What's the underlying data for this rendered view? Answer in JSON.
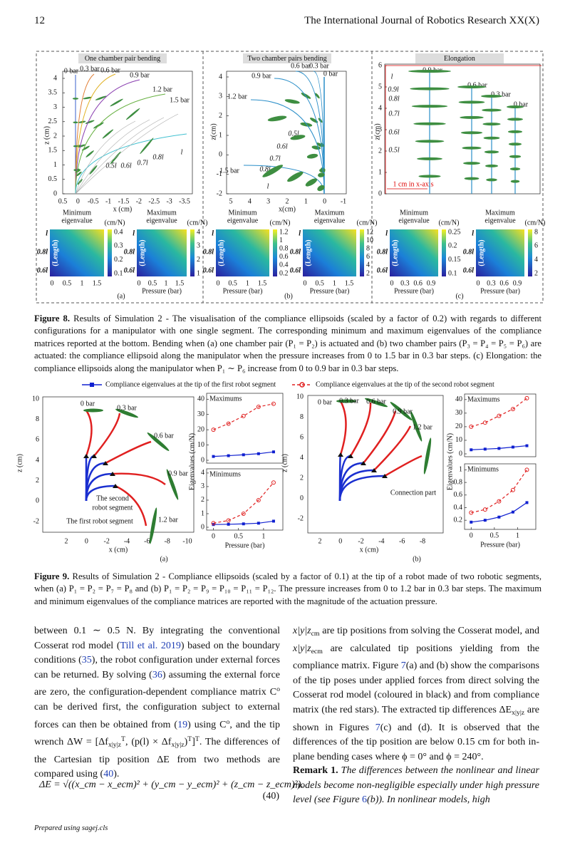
{
  "header": {
    "page_number": "12",
    "journal": "The International Journal of Robotics Research XX(X)"
  },
  "figure8": {
    "panels": [
      {
        "title": "One chamber pair bending",
        "xlabel": "x (cm)",
        "ylabel": "z (cm)",
        "xticks": [
          "0.5",
          "0",
          "-0.5",
          "-1",
          "-1.5",
          "-2",
          "-2.5",
          "-3",
          "-3.5"
        ],
        "yticks": [
          "4",
          "3.5",
          "3",
          "2.5",
          "2",
          "1.5",
          "1",
          "0.5",
          "0"
        ],
        "annotations": [
          "0 bar",
          "0.3 bar",
          "0.6 bar",
          "0.9 bar",
          "1.2 bar",
          "1.5 bar",
          "0.5l",
          "0.6l",
          "0.7l",
          "0.8l",
          "l"
        ],
        "heatmaps": [
          {
            "title": [
              "Minimum",
              "eigenvalue"
            ],
            "unit": "(cm/N)",
            "ylabel": "(Length)",
            "yticks": [
              "l",
              "0.8l",
              "0.6l"
            ],
            "xticks": [
              "0",
              "0.5",
              "1",
              "1.5"
            ],
            "xlabel": "",
            "cbticks": [
              "0.4",
              "0.3",
              "0.2",
              "0.1"
            ]
          },
          {
            "title": [
              "Maximum",
              "eigenvalue"
            ],
            "unit": "(cm/N)",
            "ylabel": "(Length)",
            "yticks": [
              "l",
              "0.8l",
              "0.6l"
            ],
            "xticks": [
              "0",
              "0.5",
              "1",
              "1.5"
            ],
            "xlabel": "Pressure (bar)",
            "cbticks": [
              "4",
              "3",
              "2",
              "1"
            ]
          }
        ],
        "label": "(a)"
      },
      {
        "title": "Two chamber pairs bending",
        "xlabel": "x(cm)",
        "ylabel": "z(cm)",
        "xticks": [
          "5",
          "4",
          "3",
          "2",
          "1",
          "0",
          "-1"
        ],
        "yticks": [
          "4",
          "3",
          "2",
          "1",
          "0",
          "-1",
          "-2"
        ],
        "annotations": [
          "0.6 bar",
          "0.3 bar",
          "0 bar",
          "0.9 bar",
          "1.2 bar",
          "1.5 bar",
          "0.5l",
          "0.6l",
          "0.7l",
          "0.8l",
          "l"
        ],
        "heatmaps": [
          {
            "title": [
              "Minimum",
              "eigenvalue"
            ],
            "unit": "(cm/N)",
            "ylabel": "(Length)",
            "yticks": [
              "l",
              "0.8l",
              "0.6l"
            ],
            "xticks": [
              "0",
              "0.5",
              "1",
              "1.5"
            ],
            "xlabel": "Pressure (bar)",
            "cbticks": [
              "1.2",
              "1",
              "0.8",
              "0.6",
              "0.4",
              "0.2"
            ]
          },
          {
            "title": [
              "Maximum",
              "eigenvalue"
            ],
            "unit": "(cm/N)",
            "ylabel": "(Length)",
            "yticks": [
              "l",
              "0.8l",
              "0.6l"
            ],
            "xticks": [
              "0",
              "0.5",
              "1",
              "1.5"
            ],
            "xlabel": "Pressure (bar)",
            "cbticks": [
              "12",
              "10",
              "8",
              "6",
              "4",
              "2"
            ]
          }
        ],
        "label": "(b)"
      },
      {
        "title": "Elongation",
        "xlabel": "",
        "ylabel": "z(cm)",
        "xticks": [],
        "yticks": [
          "6",
          "5",
          "4",
          "3",
          "2",
          "1",
          "0"
        ],
        "annotations": [
          "0.9 bar",
          "0.6 bar",
          "0.3 bar",
          "0 bar",
          "l",
          "0.9l",
          "0.8l",
          "0.7l",
          "0.6l",
          "0.5l",
          "1 cm in x-axis"
        ],
        "heatmaps": [
          {
            "title": [
              "Minimum",
              "eigenvalue"
            ],
            "unit": "(cm/N)",
            "ylabel": "(Length)",
            "yticks": [
              "l",
              "0.8l",
              "0.6l"
            ],
            "xticks": [
              "0",
              "0.3",
              "0.6",
              "0.9"
            ],
            "xlabel": "Pressure (bar)",
            "cbticks": [
              "0.25",
              "0.2",
              "0.15",
              "0.1"
            ]
          },
          {
            "title": [
              "Maximum",
              "eigenvalue"
            ],
            "unit": "(cm/N)",
            "ylabel": "(Length)",
            "yticks": [
              "l",
              "0.8l",
              "0.6l"
            ],
            "xticks": [
              "0",
              "0.3",
              "0.6",
              "0.9"
            ],
            "xlabel": "Pressure (bar)",
            "cbticks": [
              "8",
              "6",
              "4",
              "2"
            ]
          }
        ],
        "label": "(c)"
      }
    ],
    "caption": [
      {
        "b": "Figure 8."
      },
      {
        "t": " Results of Simulation 2 - The visualisation of the compliance ellipsoids (scaled by a factor of 0.2) with regards to different configurations for a manipulator with one single segment. The corresponding minimum and maximum eigenvalues of the compliance matrices reported at the bottom. Bending when (a) one chamber pair (P₁ = P₂) is actuated and (b) two chamber pairs (P₃ = P₄ = P₅ = P₆) are actuated: the compliance ellipsoid along the manipulator when the pressure increases from 0 to 1.5 bar in 0.3 bar steps. (c) Elongation: the compliance ellipsoids along the manipulator when P₁ ∼ P₆ increase from 0 to 0.9 bar in 0.3 bar steps."
      }
    ]
  },
  "figure9": {
    "legend": [
      {
        "name": "Compliance eigenvalues at the tip of the first robot segment",
        "color": "#1020d0"
      },
      {
        "name": "Compliance eigenvalues at the tip of the second robot segment",
        "color": "#e02020"
      }
    ],
    "eig_x": [
      0,
      0.3,
      0.6,
      0.9,
      1.2
    ],
    "eig_xlim": [
      -0.05,
      1.3
    ],
    "eig_xticks": [
      0,
      0.5,
      1
    ],
    "panels": [
      {
        "xlabel": "x (cm)",
        "ylabel": "z (cm)",
        "xticks": [
          "2",
          "0",
          "-2",
          "-4",
          "-6",
          "-8",
          "-10"
        ],
        "yticks": [
          "10",
          "8",
          "6",
          "4",
          "2",
          "0",
          "-2"
        ],
        "annotations": [
          "0 bar",
          "0.3 bar",
          "0.6 bar",
          "0.9 bar",
          "1.2 bar",
          "The second",
          "robot segment",
          "The first robot segment"
        ],
        "eig_ylabel": "Eigenvalues (cm/N)",
        "eig_xlabel": "Pressure (bar)",
        "maxima": {
          "title": "Maximums",
          "ylim": [
            0,
            42
          ],
          "yticks": [
            0,
            10,
            20,
            30,
            40
          ],
          "series": [
            {
              "values": [
                2.5,
                3,
                3.6,
                4.3,
                5.5
              ]
            },
            {
              "values": [
                20,
                24,
                29,
                35,
                37
              ]
            }
          ]
        },
        "minima": {
          "title": "Minimums",
          "ylim": [
            0,
            4.1
          ],
          "yticks": [
            0,
            1,
            2,
            3,
            4
          ],
          "series": [
            {
              "values": [
                0.2,
                0.22,
                0.25,
                0.3,
                0.45
              ]
            },
            {
              "values": [
                0.3,
                0.5,
                1.0,
                2.0,
                3.3
              ]
            }
          ]
        },
        "label": "(a)"
      },
      {
        "xlabel": "x (cm)",
        "ylabel": "z (cm)",
        "xticks": [
          "2",
          "0",
          "-2",
          "-4",
          "-6",
          "-8"
        ],
        "yticks": [
          "10",
          "8",
          "6",
          "4",
          "2",
          "0",
          "-2"
        ],
        "annotations": [
          "0 bar",
          "0.3 bar",
          "0.6 bar",
          "0.9 bar",
          "1.2 bar",
          "Connection part"
        ],
        "eig_ylabel": "Eigenvalues (cm/N)",
        "eig_xlabel": "Pressure (bar)",
        "maxima": {
          "title": "Maximums",
          "ylim": [
            0,
            42
          ],
          "yticks": [
            0,
            10,
            20,
            30,
            40
          ],
          "series": [
            {
              "values": [
                3,
                3.5,
                4,
                5,
                6
              ]
            },
            {
              "values": [
                20,
                23,
                28,
                33,
                41
              ]
            }
          ]
        },
        "minima": {
          "title": "Minimums",
          "ylim": [
            0.1,
            1.05
          ],
          "yticks": [
            0.2,
            0.4,
            0.6,
            0.8,
            1
          ],
          "series": [
            {
              "values": [
                0.17,
                0.2,
                0.25,
                0.33,
                0.48
              ]
            },
            {
              "values": [
                0.32,
                0.37,
                0.5,
                0.68,
                1.0
              ]
            }
          ]
        },
        "label": "(b)"
      }
    ],
    "caption": [
      {
        "b": "Figure 9."
      },
      {
        "t": " Results of Simulation 2 - Compliance ellipsoids (scaled by a factor of 0.1) at the tip of a robot made of two robotic segments, when (a) P₁ = P₂ = P₇ = P₈ and (b) P₁ = P₂ = P₉ = P₁₀ = P₁₁ = P₁₂. The pressure increases from 0 to 1.2 bar in 0.3 bar steps. The maximum and minimum eigenvalues of the compliance matrices are reported with the magnitude of the actuation pressure."
      }
    ]
  },
  "body": {
    "left": [
      {
        "t": "between 0.1 ∼ 0.5 N. By integrating the conventional Cosserat rod model ("
      },
      {
        "ref": "Till et al. 2019"
      },
      {
        "t": ") based on the boundary conditions ("
      },
      {
        "ref": "35"
      },
      {
        "t": "), the robot configuration under external forces can be returned. By solving ("
      },
      {
        "ref": "36"
      },
      {
        "t": ") assuming the external force are zero, the configuration-dependent compliance matrix C"
      },
      {
        "sup": "o"
      },
      {
        "t": " can be derived first, the configuration subject to external forces can then be obtained from ("
      },
      {
        "ref": "19"
      },
      {
        "t": ") using C"
      },
      {
        "sup": "o"
      },
      {
        "t": ", and the tip wrench ΔW = [Δf"
      },
      {
        "sub": "x|y|z"
      },
      {
        "sup": "T"
      },
      {
        "t": ", (p(l) × Δf"
      },
      {
        "sub": "x|y|z"
      },
      {
        "t": ")"
      },
      {
        "sup": "T"
      },
      {
        "t": "]"
      },
      {
        "sup": "T"
      },
      {
        "t": ". The differences of the Cartesian tip position ΔE from two methods are compared using ("
      },
      {
        "ref": "40"
      },
      {
        "t": ")."
      }
    ],
    "right": [
      {
        "i": "x|y|z"
      },
      {
        "sub": "cm"
      },
      {
        "t": " are tip positions from solving the Cosserat model, and "
      },
      {
        "i": "x|y|z"
      },
      {
        "sub": "ecm"
      },
      {
        "t": " are calculated tip positions yielding from the compliance matrix. Figure "
      },
      {
        "ref": "7"
      },
      {
        "t": "(a) and (b) show the comparisons of the tip poses under applied forces from direct solving the Cosserat rod model (coloured in black) and from compliance matrix (the red stars). The extracted tip differences ΔE"
      },
      {
        "sub": "x|y|z"
      },
      {
        "t": " are shown in Figures "
      },
      {
        "ref": "7"
      },
      {
        "t": "(c) and (d). It is observed that the differences of the tip position are below 0.15 cm for both in-plane bending cases where ϕ = 0° and ϕ = 240°."
      }
    ],
    "remark": [
      {
        "b": "Remark 1."
      },
      {
        "i": " The differences between the nonlinear and linear models become non-negligible especially under high pressure level (see Figure "
      },
      {
        "ref": "6"
      },
      {
        "i": "(b)). In nonlinear models, high"
      }
    ]
  },
  "equation": {
    "text": "ΔE = √((x_cm − x_ecm)² + (y_cm − y_ecm)² + (z_cm − z_ecm)²).",
    "number": "(40)"
  },
  "footer": "Prepared using sagej.cls"
}
